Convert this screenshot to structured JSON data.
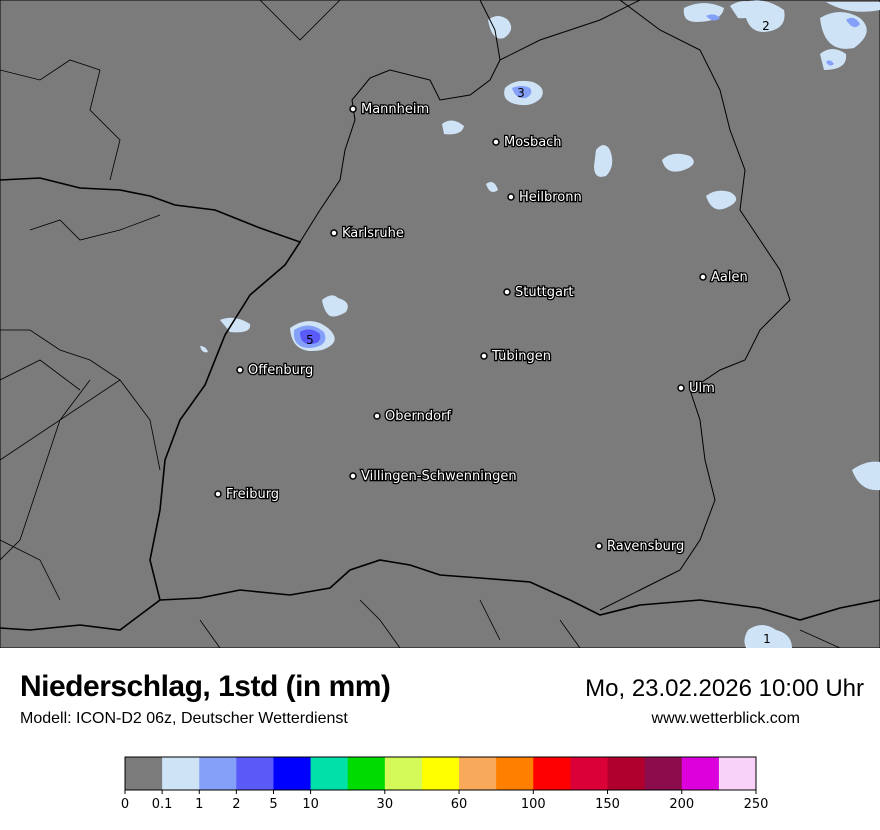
{
  "header": {
    "title": "Niederschlag, 1std (in mm)",
    "subtitle": "Modell: ICON-D2 06z, Deutscher Wetterdienst",
    "datetime": "Mo, 23.02.2026 10:00 Uhr",
    "website": "www.wetterblick.com"
  },
  "map": {
    "background_color": "#7b7b7b",
    "cities": [
      "Mannheim",
      "Mosbach",
      "Heilbronn",
      "Karlsruhe",
      "Aalen",
      "Stuttgart",
      "Tübingen",
      "Offenburg",
      "Ulm",
      "Oberndorf",
      "Villingen-Schwenningen",
      "Freiburg",
      "Ravensburg"
    ],
    "peak_values": [
      "3",
      "2",
      "5",
      "1"
    ]
  },
  "legend": {
    "colors": [
      "#7b7b7b",
      "#cfe3f7",
      "#84a0f8",
      "#5a5af8",
      "#0000ff",
      "#00e0a8",
      "#00dc00",
      "#d4fa5a",
      "#ffff00",
      "#f8aa5a",
      "#ff8000",
      "#ff0000",
      "#dc0038",
      "#b0002e",
      "#8c0c4c",
      "#dc00dc",
      "#f8d2f8"
    ],
    "ticks": [
      "0",
      "0.1",
      "1",
      "2",
      "5",
      "10",
      "30",
      "60",
      "100",
      "150",
      "200",
      "250"
    ]
  }
}
